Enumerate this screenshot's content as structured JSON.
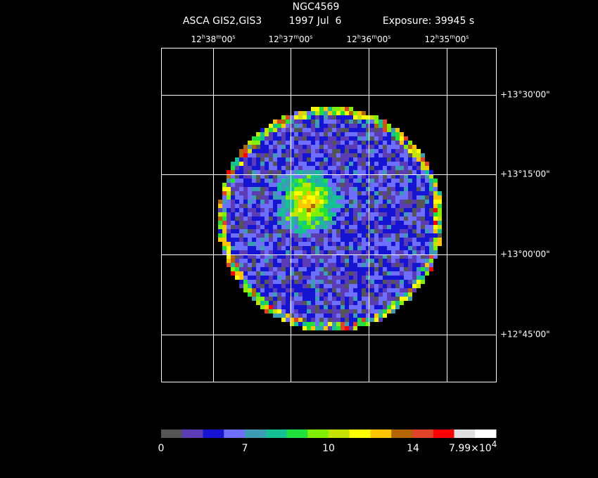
{
  "header": {
    "title": "NGC4569",
    "instrument": "ASCA GIS2,GIS3",
    "date": "1997 Jul  6",
    "exposure": "Exposure: 39945 s"
  },
  "ra_labels": [
    [
      "12",
      "h",
      "38",
      "m",
      "00",
      "s"
    ],
    [
      "12",
      "h",
      "37",
      "m",
      "00",
      "s"
    ],
    [
      "12",
      "h",
      "36",
      "m",
      "00",
      "s"
    ],
    [
      "12",
      "h",
      "35",
      "m",
      "00",
      "s"
    ]
  ],
  "dec_labels": [
    "+13°30'00\"",
    "+13°15'00\"",
    "+13°00'00\"",
    "+12°45'00\""
  ],
  "colorbar": {
    "colors": [
      "#555555",
      "#5b3cb4",
      "#1414d2",
      "#6e6eff",
      "#3c9cb4",
      "#14c094",
      "#22e03c",
      "#80f000",
      "#c4e400",
      "#ffff00",
      "#ffc400",
      "#b46400",
      "#e04428",
      "#ff0000",
      "#e0e0e0",
      "#ffffff"
    ],
    "labels": [
      "0",
      "7",
      "10",
      "14"
    ],
    "max_label": {
      "mantissa": "7.99×10",
      "exponent": "4"
    }
  }
}
